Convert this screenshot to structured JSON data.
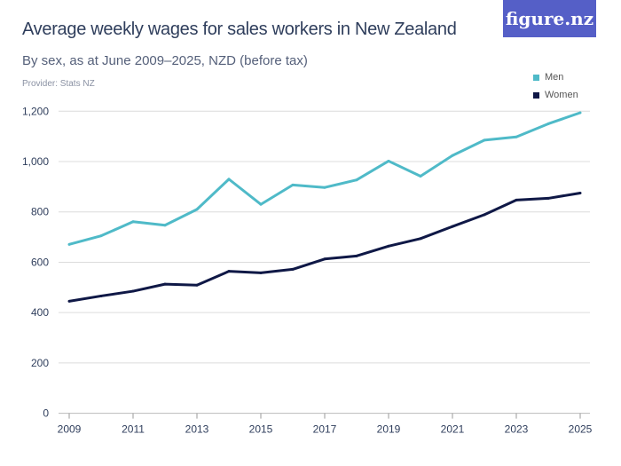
{
  "header": {
    "title": "Average weekly wages for sales workers in New Zealand",
    "subtitle": "By sex, as at June 2009–2025, NZD (before tax)",
    "provider": "Provider: Stats NZ",
    "logo": "figure.nz"
  },
  "chart_data": {
    "type": "line",
    "title": "Average weekly wages for sales workers in New Zealand",
    "subtitle": "By sex, as at June 2009–2025, NZD (before tax)",
    "x": [
      2009,
      2010,
      2011,
      2012,
      2013,
      2014,
      2015,
      2016,
      2017,
      2018,
      2019,
      2020,
      2021,
      2022,
      2023,
      2024,
      2025
    ],
    "x_ticks": [
      "2009",
      "2011",
      "2013",
      "2015",
      "2017",
      "2019",
      "2021",
      "2023",
      "2025"
    ],
    "y_ticks": [
      "0",
      "200",
      "400",
      "600",
      "800",
      "1,000",
      "1,200"
    ],
    "ylim": [
      0,
      1200
    ],
    "grid": true,
    "legend": "top-right",
    "series": [
      {
        "name": "Men",
        "color": "#4fbac8",
        "values": [
          671,
          705,
          761,
          747,
          810,
          930,
          830,
          907,
          897,
          927,
          1002,
          942,
          1024,
          1085,
          1098,
          1150,
          1194
        ]
      },
      {
        "name": "Women",
        "color": "#0f1846",
        "values": [
          445,
          466,
          485,
          513,
          509,
          564,
          558,
          572,
          613,
          625,
          664,
          694,
          742,
          789,
          847,
          854,
          875
        ]
      }
    ]
  }
}
